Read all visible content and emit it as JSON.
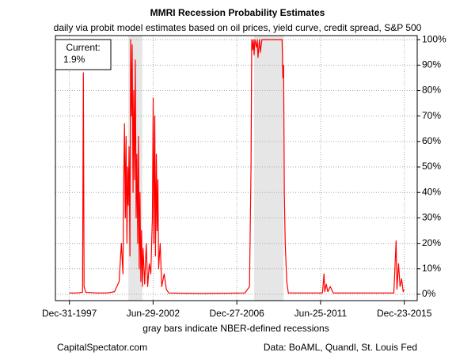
{
  "chart_data": {
    "type": "line",
    "title": "MMRI Recession Probability Estimates",
    "subtitle": "daily via probit model estimates based on oil prices, yield curve, credit spread, S&P 500",
    "x_note": "gray bars indicate NBER-defined recessions",
    "source_left": "CapitalSpectator.com",
    "source_right": "Data: BoAML, Quandl, St. Louis Fed",
    "annotation": {
      "label": "Current:",
      "value": 1.9,
      "value_label": "1.9%"
    },
    "color": "#ff0000",
    "recession_color": "#e6e6e6",
    "recessions": [
      {
        "start": "2001-03-01",
        "end": "2001-11-30"
      },
      {
        "start": "2007-12-01",
        "end": "2009-06-30"
      }
    ],
    "grid": true,
    "xlim": [
      "1997-04-01",
      "2016-09-01"
    ],
    "xticks": [
      {
        "value": "1997-12-31",
        "label": "Dec-31-1997"
      },
      {
        "value": "2002-06-29",
        "label": "Jun-29-2002"
      },
      {
        "value": "2006-12-27",
        "label": "Dec-27-2006"
      },
      {
        "value": "2011-06-25",
        "label": "Jun-25-2011"
      },
      {
        "value": "2015-12-23",
        "label": "Dec-23-2015"
      }
    ],
    "ylim": [
      -2.5,
      101.6
    ],
    "yticks": [
      {
        "value": 0,
        "label": "0%"
      },
      {
        "value": 10,
        "label": "10%"
      },
      {
        "value": 20,
        "label": "20%"
      },
      {
        "value": 30,
        "label": "30%"
      },
      {
        "value": 40,
        "label": "40%"
      },
      {
        "value": 50,
        "label": "50%"
      },
      {
        "value": 60,
        "label": "60%"
      },
      {
        "value": 70,
        "label": "70%"
      },
      {
        "value": 80,
        "label": "80%"
      },
      {
        "value": 90,
        "label": "90%"
      },
      {
        "value": 100,
        "label": "100%"
      }
    ],
    "x": [
      "1997-12-31",
      "1998-06-01",
      "1998-09-15",
      "1998-10-01",
      "1998-10-15",
      "1998-11-15",
      "1999-06-01",
      "2000-01-01",
      "2000-06-01",
      "2000-09-01",
      "2000-10-15",
      "2000-11-15",
      "2000-12-01",
      "2000-12-15",
      "2001-01-01",
      "2001-01-15",
      "2001-02-01",
      "2001-02-15",
      "2001-03-01",
      "2001-03-15",
      "2001-04-01",
      "2001-04-15",
      "2001-05-01",
      "2001-05-15",
      "2001-06-01",
      "2001-06-15",
      "2001-07-01",
      "2001-07-15",
      "2001-08-01",
      "2001-08-15",
      "2001-09-01",
      "2001-09-15",
      "2001-10-01",
      "2001-10-15",
      "2001-11-01",
      "2001-11-15",
      "2001-12-01",
      "2001-12-15",
      "2002-01-15",
      "2002-02-15",
      "2002-03-15",
      "2002-04-15",
      "2002-05-15",
      "2002-06-15",
      "2002-07-01",
      "2002-07-15",
      "2002-08-01",
      "2002-08-15",
      "2002-09-01",
      "2002-09-15",
      "2002-10-01",
      "2002-10-15",
      "2002-11-15",
      "2002-12-15",
      "2003-02-01",
      "2003-03-15",
      "2003-05-01",
      "2005-01-01",
      "2007-06-01",
      "2007-09-01",
      "2007-10-01",
      "2007-10-15",
      "2007-11-01",
      "2007-11-15",
      "2007-12-01",
      "2007-12-15",
      "2008-01-15",
      "2008-02-01",
      "2008-02-15",
      "2008-03-15",
      "2008-04-01",
      "2008-05-01",
      "2009-06-01",
      "2009-06-15",
      "2009-07-01",
      "2009-07-15",
      "2009-08-01",
      "2009-09-01",
      "2009-10-01",
      "2011-08-01",
      "2011-09-01",
      "2011-09-15",
      "2011-10-15",
      "2011-11-15",
      "2012-01-01",
      "2012-03-01",
      "2015-06-01",
      "2015-07-15",
      "2015-08-01",
      "2015-09-01",
      "2015-10-01",
      "2015-11-01",
      "2015-12-01",
      "2015-12-23"
    ],
    "values": [
      0.5,
      0.5,
      0.8,
      87,
      3,
      0.8,
      0.5,
      0.5,
      1,
      5,
      20,
      8,
      45,
      67,
      30,
      62,
      20,
      50,
      35,
      58,
      15,
      100,
      70,
      98,
      40,
      80,
      45,
      92,
      30,
      55,
      20,
      62,
      10,
      40,
      5,
      25,
      3,
      18,
      4,
      20,
      3,
      12,
      8,
      30,
      77,
      20,
      70,
      15,
      55,
      25,
      45,
      10,
      20,
      3,
      8,
      2,
      0.5,
      0.3,
      0.5,
      3,
      50,
      100,
      96,
      100,
      94,
      100,
      97,
      100,
      93,
      100,
      95,
      100,
      100,
      85,
      90,
      40,
      20,
      5,
      0.5,
      0.5,
      8,
      1,
      4,
      1,
      3,
      0.5,
      0.5,
      21,
      2,
      12,
      3,
      6,
      1,
      1.9
    ]
  }
}
